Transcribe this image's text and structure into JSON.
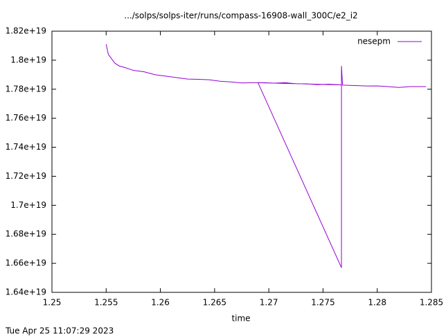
{
  "chart_data": {
    "type": "line",
    "title": ".../solps/solps-iter/runs/compass-16908-wall_300C/e2_i2",
    "x_label": "time",
    "timestamp": "Tue Apr 25 11:07:29 2023",
    "xlim": [
      1.25,
      1.285
    ],
    "xticks": [
      1.25,
      1.255,
      1.26,
      1.265,
      1.27,
      1.275,
      1.28,
      1.285
    ],
    "ylim": [
      1.64e+19,
      1.82e+19
    ],
    "yticks": [
      {
        "value": 1.64e+19,
        "label": "1.64e+19"
      },
      {
        "value": 1.66e+19,
        "label": "1.66e+19"
      },
      {
        "value": 1.68e+19,
        "label": "1.68e+19"
      },
      {
        "value": 1.7e+19,
        "label": "1.7e+19"
      },
      {
        "value": 1.72e+19,
        "label": "1.72e+19"
      },
      {
        "value": 1.74e+19,
        "label": "1.74e+19"
      },
      {
        "value": 1.76e+19,
        "label": "1.76e+19"
      },
      {
        "value": 1.78e+19,
        "label": "1.78e+19"
      },
      {
        "value": 1.8e+19,
        "label": "1.8e+19"
      },
      {
        "value": 1.82e+19,
        "label": "1.82e+19"
      }
    ],
    "grid": false,
    "legend": "top-right",
    "series": [
      {
        "name": "nesepm",
        "color": "#9400d3",
        "x": [
          1.255,
          1.2552,
          1.2555,
          1.2558,
          1.2562,
          1.2567,
          1.2575,
          1.2585,
          1.2595,
          1.2605,
          1.2615,
          1.2625,
          1.2635,
          1.2645,
          1.2655,
          1.2665,
          1.2675,
          1.2685,
          1.2695,
          1.2705,
          1.2715,
          1.2725,
          1.2735,
          1.2745,
          1.2755,
          1.2767,
          1.269,
          1.2767,
          1.2767,
          1.2768,
          1.278,
          1.279,
          1.28,
          1.281,
          1.282,
          1.283,
          1.2845
        ],
        "values": [
          1.811e+19,
          1.804e+19,
          1.801e+19,
          1.798e+19,
          1.796e+19,
          1.795e+19,
          1.793e+19,
          1.792e+19,
          1.79e+19,
          1.789e+19,
          1.788e+19,
          1.787e+19,
          1.7868e+19,
          1.7865e+19,
          1.7855e+19,
          1.785e+19,
          1.7843e+19,
          1.7845e+19,
          1.7845e+19,
          1.7842e+19,
          1.7845e+19,
          1.7838e+19,
          1.7837e+19,
          1.7832e+19,
          1.7835e+19,
          1.783e+19,
          1.7845e+19,
          1.657e+19,
          1.796e+19,
          1.7828e+19,
          1.7825e+19,
          1.7822e+19,
          1.7823e+19,
          1.7818e+19,
          1.7812e+19,
          1.7818e+19,
          1.7818e+19
        ]
      }
    ]
  }
}
